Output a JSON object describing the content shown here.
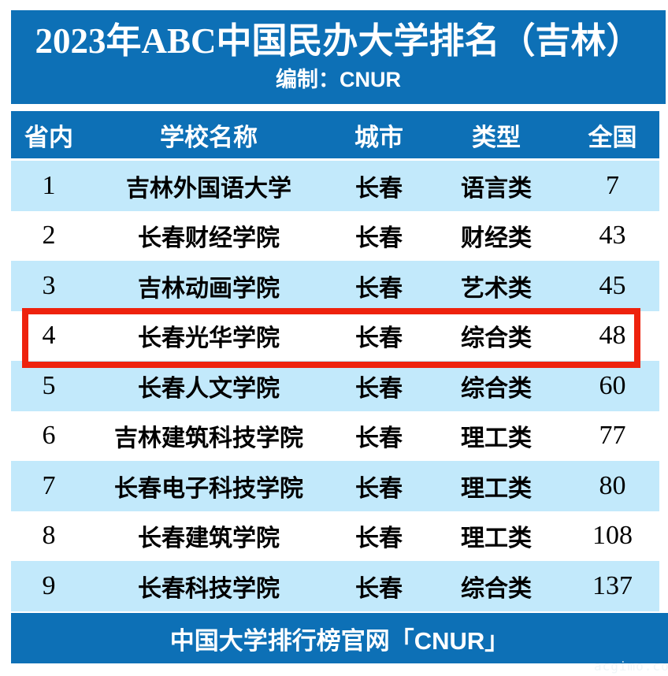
{
  "colors": {
    "primary_blue": "#0d70b6",
    "row_light_blue": "#c2e9fb",
    "row_white": "#ffffff",
    "highlight_red": "#ee220d",
    "title_text": "#ffffff",
    "body_text": "#000000"
  },
  "title_block": {
    "title": "2023年ABC中国民办大学排名（吉林）",
    "subtitle": "编制：CNUR"
  },
  "table": {
    "columns": [
      "省内",
      "学校名称",
      "城市",
      "类型",
      "全国"
    ],
    "rows": [
      {
        "rank": "1",
        "name": "吉林外国语大学",
        "city": "长春",
        "type": "语言类",
        "national": "7"
      },
      {
        "rank": "2",
        "name": "长春财经学院",
        "city": "长春",
        "type": "财经类",
        "national": "43"
      },
      {
        "rank": "3",
        "name": "吉林动画学院",
        "city": "长春",
        "type": "艺术类",
        "national": "45"
      },
      {
        "rank": "4",
        "name": "长春光华学院",
        "city": "长春",
        "type": "综合类",
        "national": "48"
      },
      {
        "rank": "5",
        "name": "长春人文学院",
        "city": "长春",
        "type": "综合类",
        "national": "60"
      },
      {
        "rank": "6",
        "name": "吉林建筑科技学院",
        "city": "长春",
        "type": "理工类",
        "national": "77"
      },
      {
        "rank": "7",
        "name": "长春电子科技学院",
        "city": "长春",
        "type": "理工类",
        "national": "80"
      },
      {
        "rank": "8",
        "name": "长春建筑学院",
        "city": "长春",
        "type": "理工类",
        "national": "108"
      },
      {
        "rank": "9",
        "name": "长春科技学院",
        "city": "长春",
        "type": "综合类",
        "national": "137"
      }
    ],
    "highlighted_rank": "4"
  },
  "footer": {
    "text": "中国大学排行榜官网「CNUR」"
  },
  "watermark": "acgimo.co",
  "chart_data": {
    "type": "table",
    "title": "2023年ABC中国民办大学排名（吉林）",
    "subtitle": "编制：CNUR",
    "columns": [
      "省内",
      "学校名称",
      "城市",
      "类型",
      "全国"
    ],
    "rows": [
      [
        1,
        "吉林外国语大学",
        "长春",
        "语言类",
        7
      ],
      [
        2,
        "长春财经学院",
        "长春",
        "财经类",
        43
      ],
      [
        3,
        "吉林动画学院",
        "长春",
        "艺术类",
        45
      ],
      [
        4,
        "长春光华学院",
        "长春",
        "综合类",
        48
      ],
      [
        5,
        "长春人文学院",
        "长春",
        "综合类",
        60
      ],
      [
        6,
        "吉林建筑科技学院",
        "长春",
        "理工类",
        77
      ],
      [
        7,
        "长春电子科技学院",
        "长春",
        "理工类",
        80
      ],
      [
        8,
        "长春建筑学院",
        "长春",
        "理工类",
        108
      ],
      [
        9,
        "长春科技学院",
        "长春",
        "综合类",
        137
      ]
    ],
    "highlighted_row_rank": 4,
    "row_stripe_pattern": "odd-rows-light-blue",
    "footer": "中国大学排行榜官网「CNUR」"
  }
}
